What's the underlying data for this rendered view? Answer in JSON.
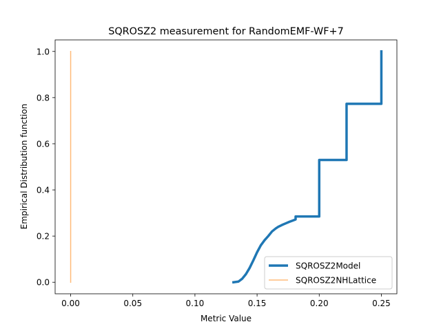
{
  "chart_data": {
    "type": "line",
    "title": "SQROSZ2 measurement for RandomEMF-WF+7",
    "xlabel": "Metric Value",
    "ylabel": "Empirical Distribution function",
    "xlim": [
      -0.0125,
      0.2625
    ],
    "ylim": [
      -0.05,
      1.05
    ],
    "xticks": [
      0.0,
      0.05,
      0.1,
      0.15,
      0.2,
      0.25
    ],
    "xtick_labels": [
      "0.00",
      "0.05",
      "0.10",
      "0.15",
      "0.20",
      "0.25"
    ],
    "yticks": [
      0.0,
      0.2,
      0.4,
      0.6,
      0.8,
      1.0
    ],
    "ytick_labels": [
      "0.0",
      "0.2",
      "0.4",
      "0.6",
      "0.8",
      "1.0"
    ],
    "grid": false,
    "legend_position": "lower-right",
    "series": [
      {
        "name": "SQROSZ2Model",
        "color": "#1f77b4",
        "x": [
          0.131,
          0.135,
          0.138,
          0.141,
          0.144,
          0.147,
          0.15,
          0.153,
          0.156,
          0.159,
          0.162,
          0.165,
          0.167,
          0.17,
          0.173,
          0.176,
          0.179,
          0.181,
          0.181,
          0.2,
          0.2,
          0.222,
          0.222,
          0.25,
          0.25
        ],
        "y": [
          0.0,
          0.003,
          0.015,
          0.035,
          0.062,
          0.095,
          0.13,
          0.16,
          0.182,
          0.2,
          0.22,
          0.233,
          0.24,
          0.248,
          0.255,
          0.262,
          0.268,
          0.272,
          0.285,
          0.285,
          0.53,
          0.53,
          0.773,
          0.773,
          1.0
        ]
      },
      {
        "name": "SQROSZ2NHLattice",
        "color": "#ffbb78",
        "x": [
          0.0,
          0.0
        ],
        "y": [
          0.0,
          1.0
        ]
      }
    ]
  }
}
